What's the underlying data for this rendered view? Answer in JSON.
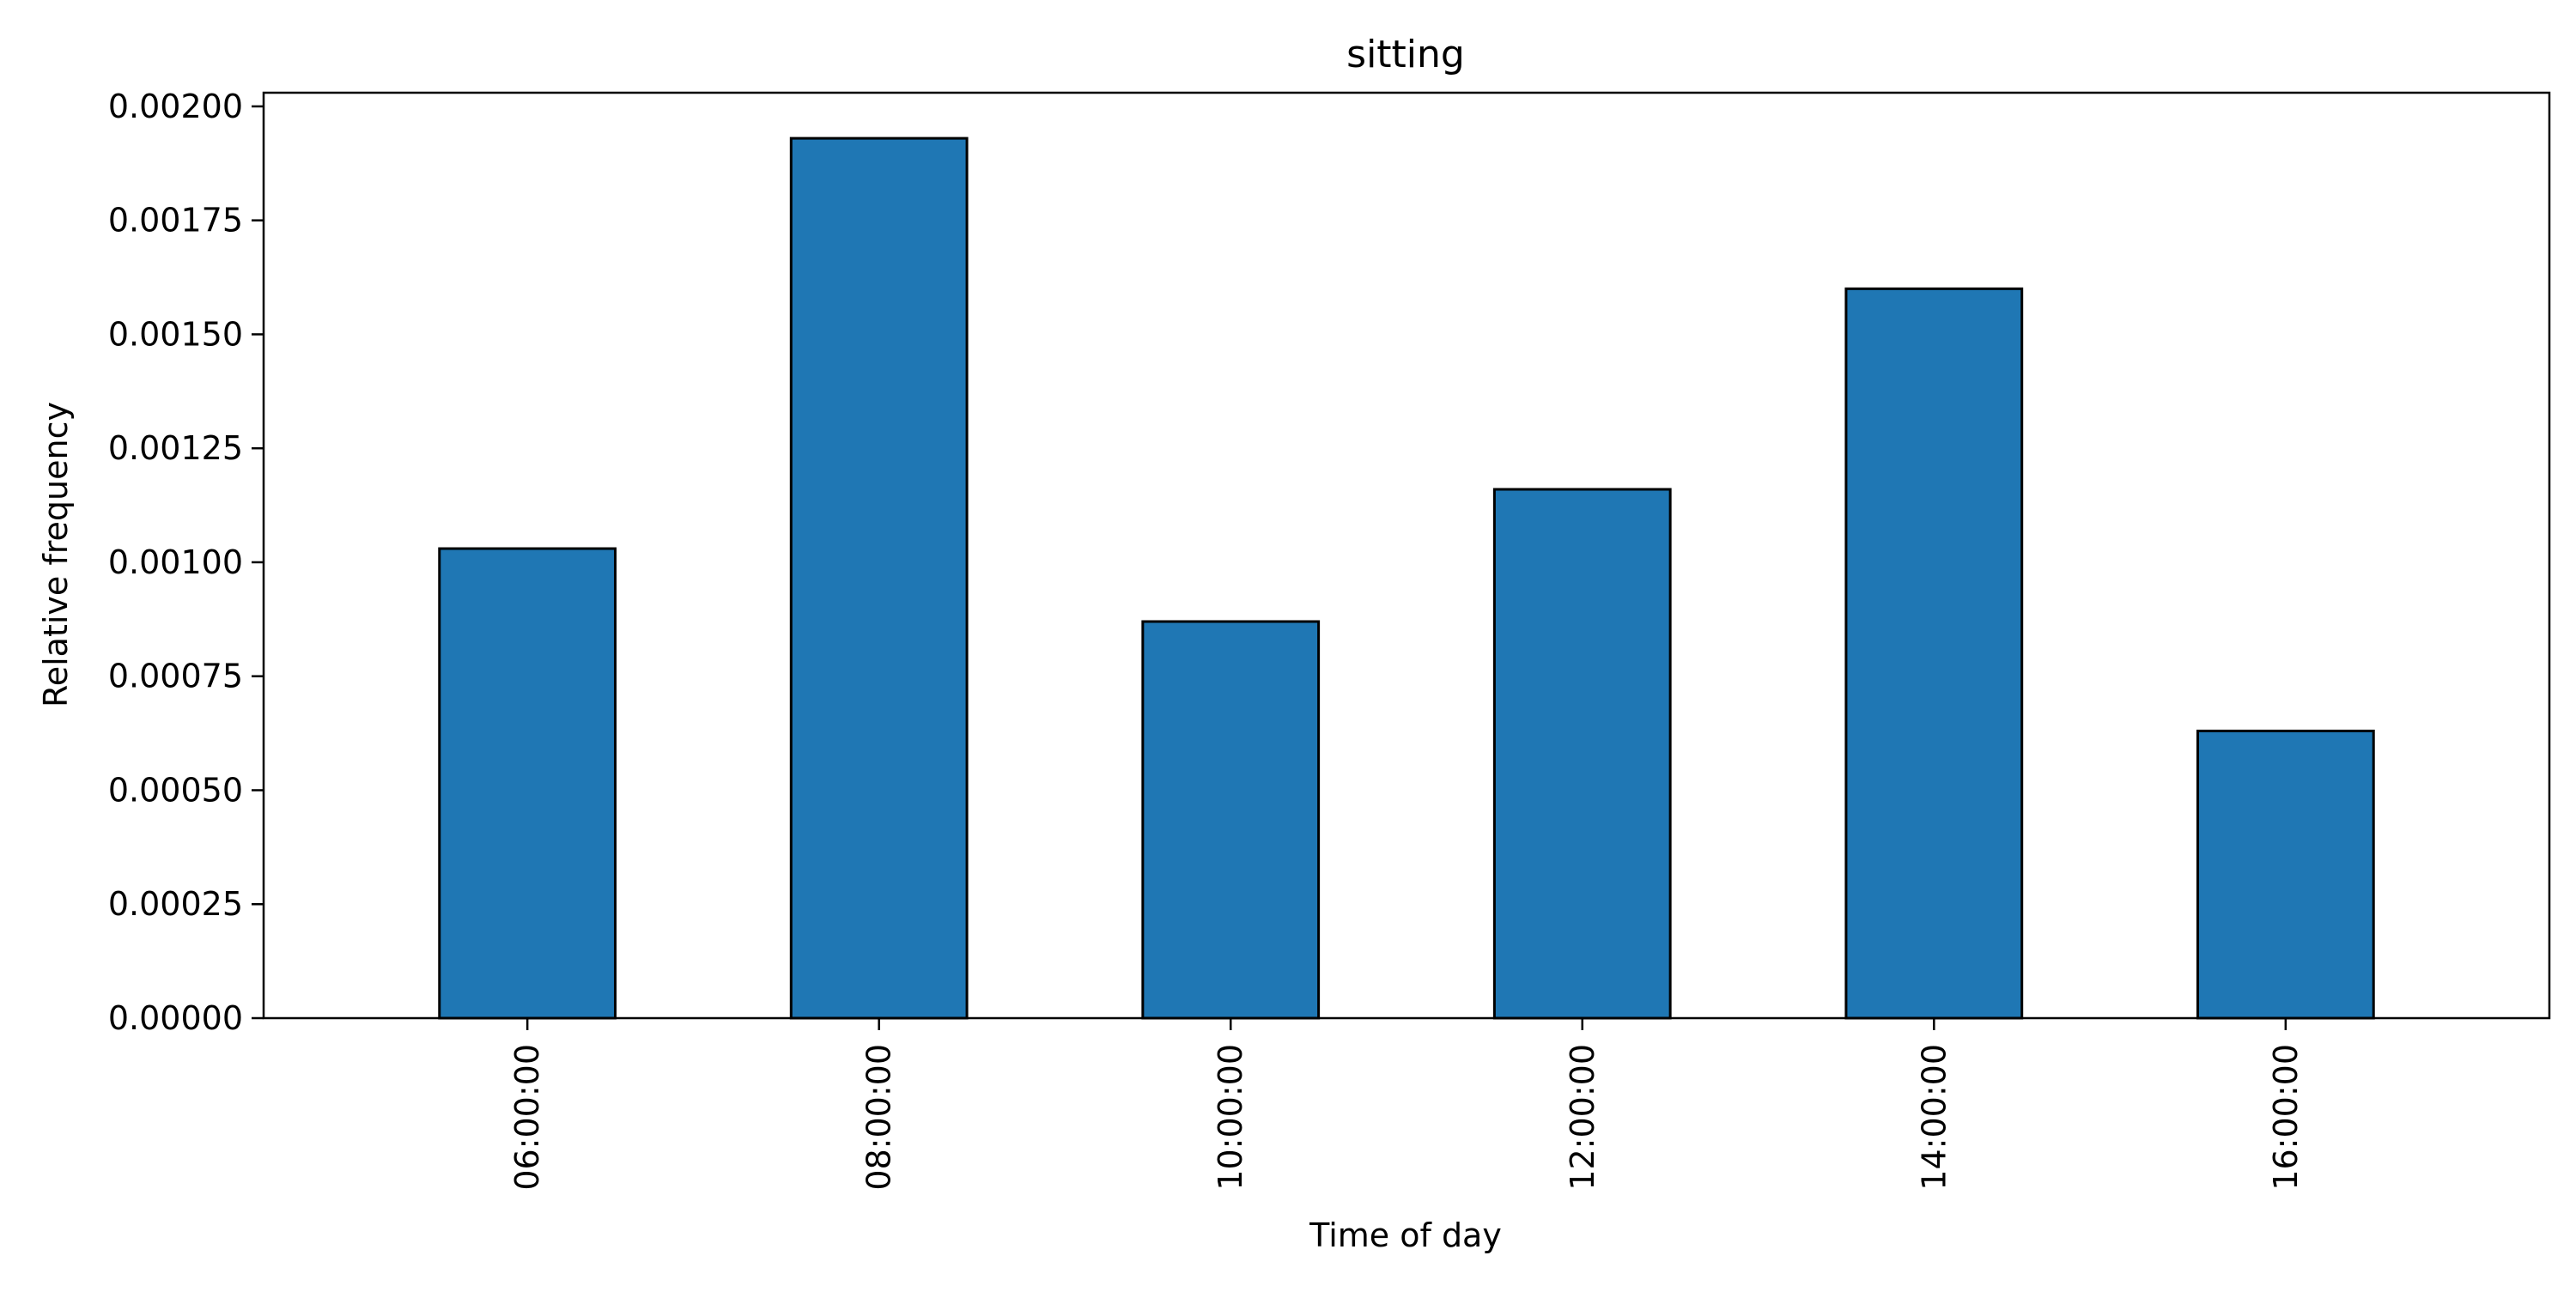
{
  "chart_data": {
    "type": "bar",
    "title": "sitting",
    "xlabel": "Time of day",
    "ylabel": "Relative frequency",
    "categories": [
      "06:00:00",
      "08:00:00",
      "10:00:00",
      "12:00:00",
      "14:00:00",
      "16:00:00"
    ],
    "values": [
      0.00103,
      0.00193,
      0.00087,
      0.00116,
      0.0016,
      0.00063
    ],
    "ylim": [
      0,
      0.00203
    ],
    "yticks": [
      "0.00000",
      "0.00025",
      "0.00050",
      "0.00075",
      "0.00100",
      "0.00125",
      "0.00150",
      "0.00175",
      "0.00200"
    ],
    "ytick_values": [
      0,
      0.00025,
      0.0005,
      0.00075,
      0.001,
      0.00125,
      0.0015,
      0.00175,
      0.002
    ],
    "bar_color": "#1f77b4",
    "edge_color": "#000000",
    "grid": false,
    "legend": "none"
  }
}
